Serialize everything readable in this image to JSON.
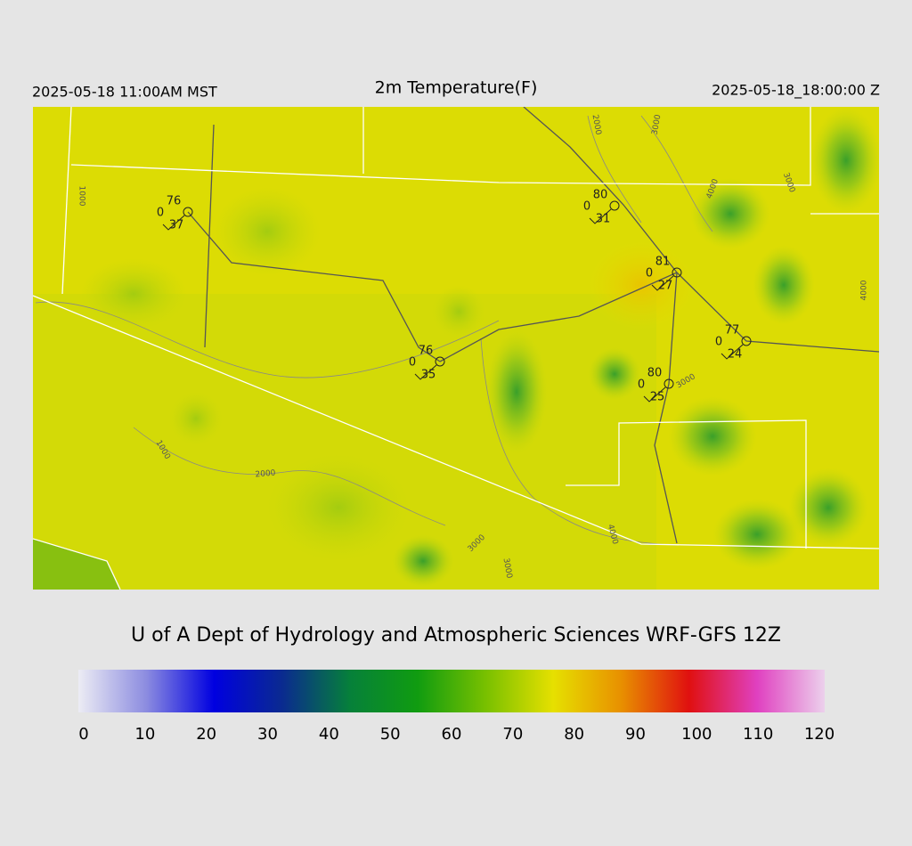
{
  "header": {
    "local_time": "2025-05-18 11:00AM MST",
    "title": "2m Temperature(F)",
    "valid_time": "2025-05-18_18:00:00 Z"
  },
  "stations": [
    {
      "temperature": 76,
      "cloud": 0,
      "dewpoint": 37
    },
    {
      "temperature": 80,
      "cloud": 0,
      "dewpoint": 31
    },
    {
      "temperature": 81,
      "cloud": 0,
      "dewpoint": 27
    },
    {
      "temperature": 77,
      "cloud": 0,
      "dewpoint": 24
    },
    {
      "temperature": 76,
      "cloud": 0,
      "dewpoint": 35
    },
    {
      "temperature": 80,
      "cloud": 0,
      "dewpoint": 25
    }
  ],
  "contour_labels": [
    "1000",
    "2000",
    "3000",
    "4000",
    "3000",
    "4000",
    "3000",
    "1000",
    "2000",
    "3000",
    "3000",
    "4000"
  ],
  "credit": "U of A Dept of Hydrology and Atmospheric Sciences WRF-GFS 12Z",
  "colorbar": {
    "range": [
      0,
      120
    ],
    "ticks": [
      0,
      10,
      20,
      30,
      40,
      50,
      60,
      70,
      80,
      90,
      100,
      110,
      120
    ],
    "colors": [
      "#ececf4",
      "#8c8ce0",
      "#0000e0",
      "#0a2a90",
      "#06803a",
      "#109c10",
      "#78c000",
      "#e6e000",
      "#e89000",
      "#e01010",
      "#e040c0",
      "#ecd0ec"
    ]
  }
}
